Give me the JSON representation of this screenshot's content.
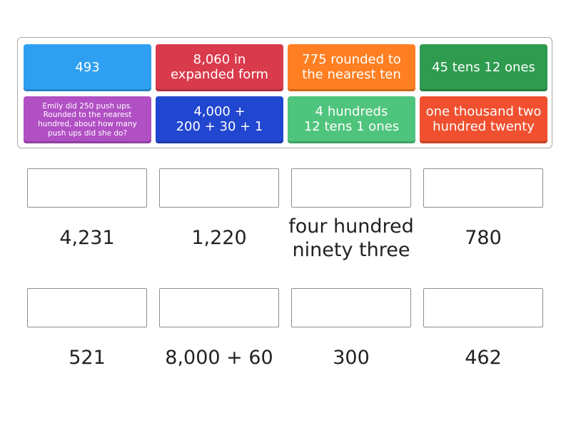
{
  "colors": {
    "blue_light": "#2fa0f1",
    "red": "#d93b4c",
    "orange": "#ff7f22",
    "green": "#2e9b4f",
    "purple": "#b14fc4",
    "blue_dark": "#2146cf",
    "green_light": "#4fc47c",
    "red_orange": "#f0502f"
  },
  "tiles": [
    {
      "text": "493"
    },
    {
      "text": "8,060 in expanded form"
    },
    {
      "text": "775 rounded to the nearest ten"
    },
    {
      "text": "45 tens 12 ones"
    },
    {
      "text": "Emily did 250 push ups. Rounded to the nearest hundred, about how many push ups did she do?"
    },
    {
      "line1": "4,000 +",
      "line2": "200 + 30 + 1"
    },
    {
      "line1": "4 hundreds",
      "line2": "12 tens 1 ones"
    },
    {
      "text": "one thousand two hundred twenty"
    }
  ],
  "answers": [
    "4,231",
    "1,220",
    "four hundred ninety three",
    "780",
    "521",
    "8,000 + 60",
    "300",
    "462"
  ]
}
